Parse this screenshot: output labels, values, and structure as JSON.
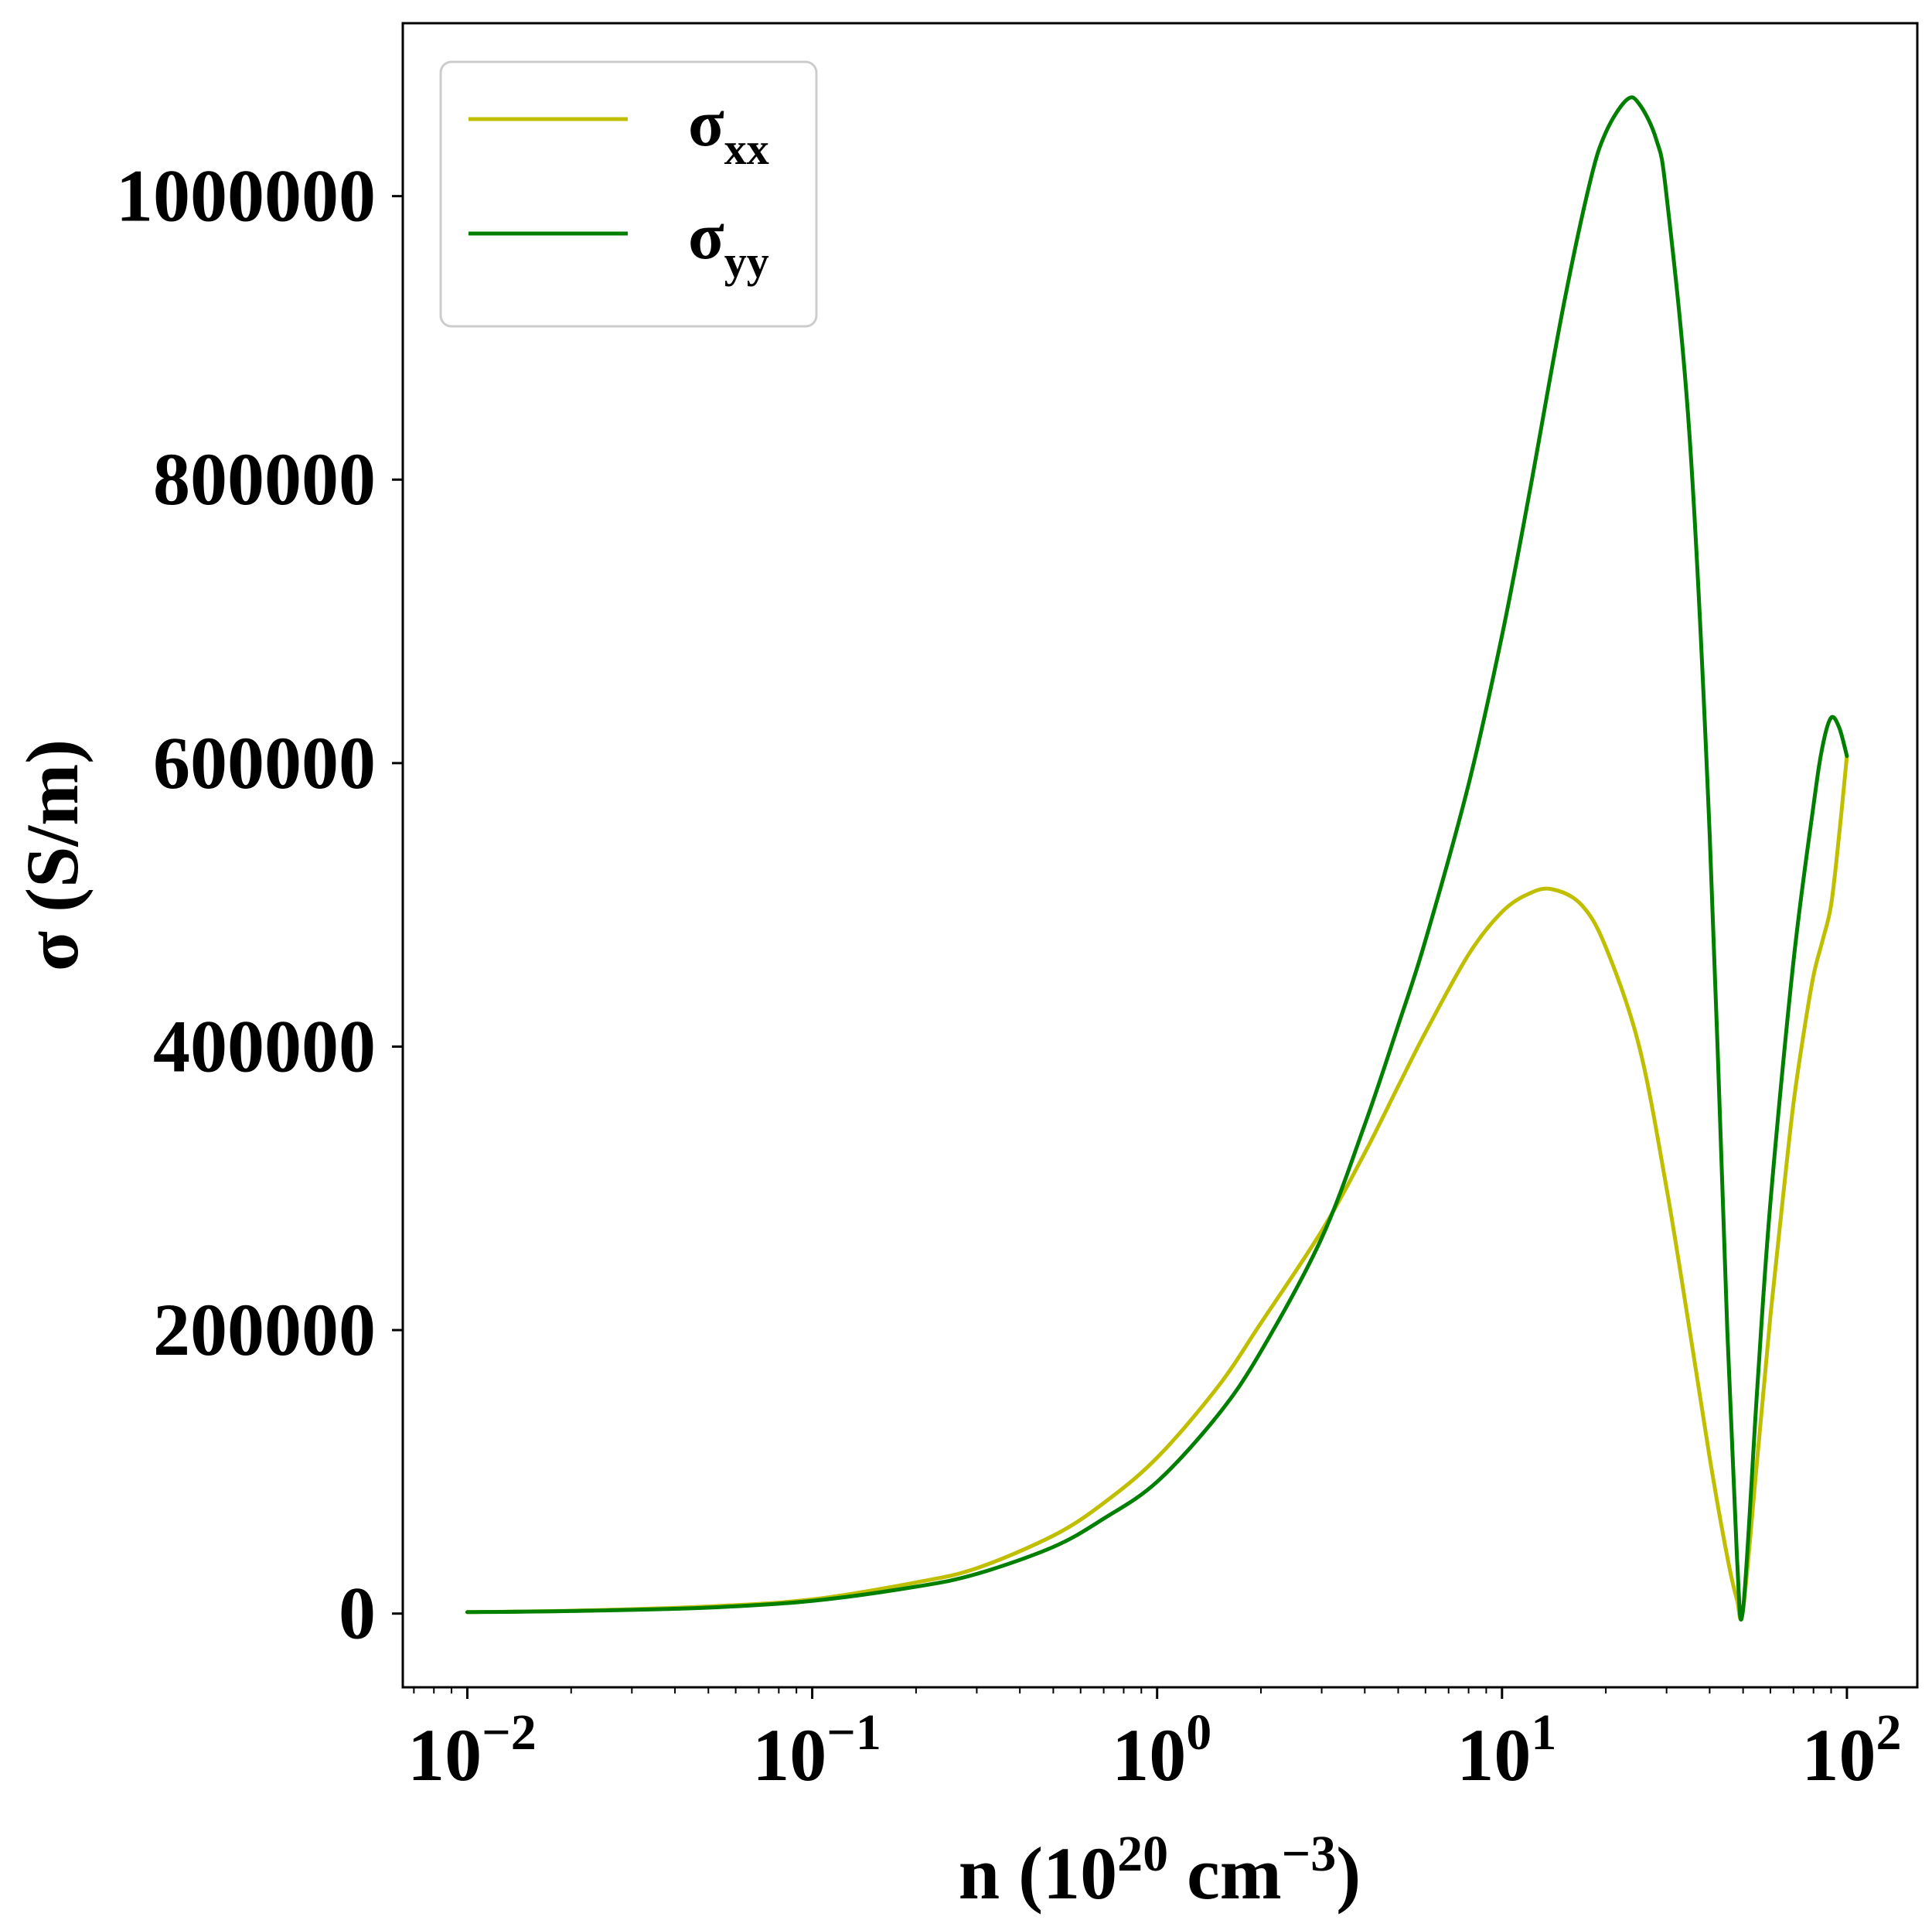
{
  "chart_data": {
    "type": "line",
    "title": "",
    "xlabel": {
      "prefix": "n (10",
      "exp1": "20",
      "mid": " cm",
      "exp2": "−3",
      "suffix": ")"
    },
    "ylabel": "σ (S/m)",
    "x_scale": "log",
    "xlim": [
      0.0065,
      160
    ],
    "ylim": [
      -52000,
      1122000
    ],
    "x_ticks": [
      {
        "value": 0.01,
        "base": "10",
        "exp": "−2"
      },
      {
        "value": 0.1,
        "base": "10",
        "exp": "−1"
      },
      {
        "value": 1,
        "base": "10",
        "exp": "0"
      },
      {
        "value": 10,
        "base": "10",
        "exp": "1"
      },
      {
        "value": 100,
        "base": "10",
        "exp": "2"
      }
    ],
    "y_ticks": [
      {
        "value": 0,
        "label": "0"
      },
      {
        "value": 200000,
        "label": "200000"
      },
      {
        "value": 400000,
        "label": "400000"
      },
      {
        "value": 600000,
        "label": "600000"
      },
      {
        "value": 800000,
        "label": "800000"
      },
      {
        "value": 1000000,
        "label": "1000000"
      }
    ],
    "grid": false,
    "legend_position": "top-left",
    "series": [
      {
        "name": "σxx",
        "name_base": "σ",
        "name_sub": "xx",
        "color": "#bfbf00",
        "x": [
          0.01,
          0.02,
          0.05,
          0.1,
          0.2,
          0.3,
          0.5,
          0.7,
          1.0,
          1.5,
          2.0,
          3.0,
          4.0,
          5.0,
          6.0,
          8.0,
          10.0,
          12.0,
          14.0,
          17.0,
          20.0,
          25.0,
          30.0,
          35.0,
          40.0,
          45.0,
          48.0,
          50.0,
          55.0,
          60.0,
          65.0,
          70.0,
          75.0,
          80.0,
          85.0,
          90.0,
          95.0,
          100.0
        ],
        "y": [
          1000,
          2000,
          5000,
          10000,
          22000,
          32000,
          55000,
          78000,
          110000,
          160000,
          205000,
          270000,
          325000,
          372000,
          410000,
          465000,
          495000,
          508000,
          511000,
          500000,
          470000,
          400000,
          300000,
          200000,
          110000,
          40000,
          10000,
          3000,
          110000,
          210000,
          290000,
          360000,
          410000,
          450000,
          475000,
          500000,
          550000,
          605000
        ]
      },
      {
        "name": "σyy",
        "name_base": "σ",
        "name_sub": "yy",
        "color": "#007f00",
        "x": [
          0.01,
          0.02,
          0.05,
          0.1,
          0.2,
          0.3,
          0.5,
          0.7,
          1.0,
          1.5,
          2.0,
          3.0,
          4.0,
          5.0,
          6.0,
          8.0,
          10.0,
          12.0,
          15.0,
          18.0,
          20.0,
          23.0,
          25.0,
          28.0,
          30.0,
          35.0,
          40.0,
          45.0,
          48.0,
          50.0,
          55.0,
          60.0,
          70.0,
          80.0,
          85.0,
          90.0,
          95.0,
          100.0
        ],
        "y": [
          1000,
          1800,
          4200,
          9000,
          19000,
          28000,
          47000,
          67000,
          93000,
          140000,
          185000,
          265000,
          345000,
          415000,
          475000,
          585000,
          690000,
          790000,
          920000,
          1010000,
          1045000,
          1068000,
          1065000,
          1040000,
          1000000,
          830000,
          550000,
          200000,
          40000,
          3000,
          160000,
          290000,
          460000,
          570000,
          612000,
          632000,
          625000,
          605000
        ]
      }
    ]
  }
}
